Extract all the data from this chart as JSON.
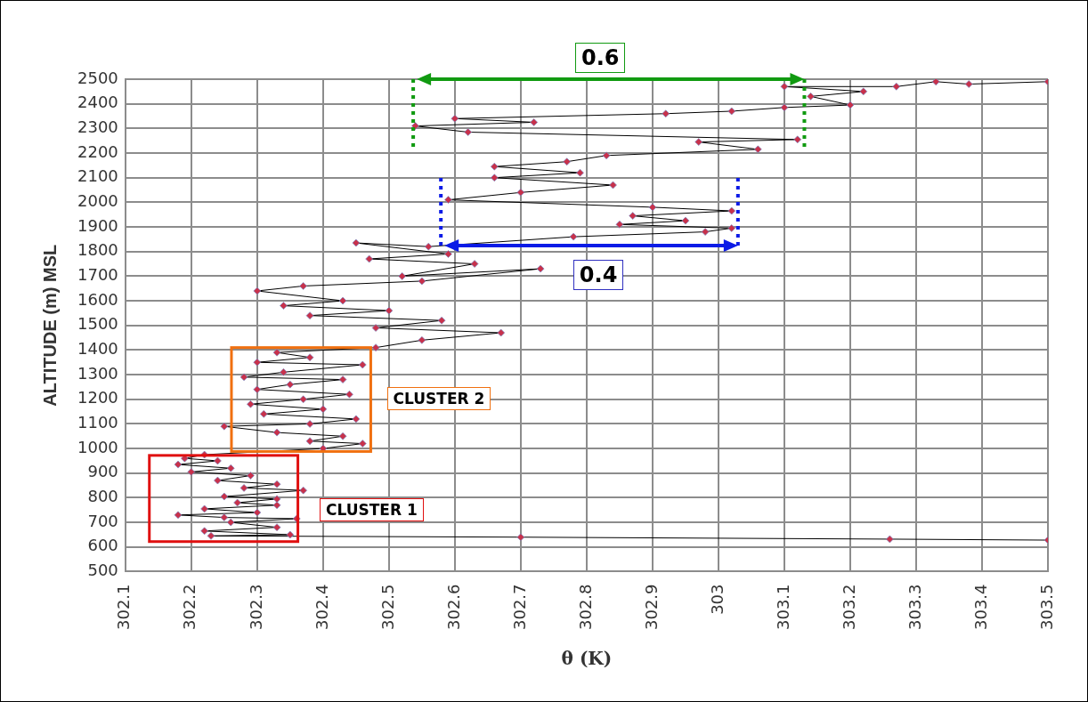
{
  "chart_data": {
    "type": "line",
    "xlabel": "θ (K)",
    "ylabel": "ALTITUDE (m) MSL",
    "xlim": [
      302.1,
      303.5
    ],
    "xticks": [
      302.1,
      302.2,
      302.3,
      302.4,
      302.5,
      302.6,
      302.7,
      302.8,
      302.9,
      303,
      303.1,
      303.2,
      303.3,
      303.4,
      303.5
    ],
    "ylim": [
      500,
      2500
    ],
    "yticks": [
      500,
      600,
      700,
      800,
      900,
      1000,
      1100,
      1200,
      1300,
      1400,
      1500,
      1600,
      1700,
      1800,
      1900,
      2000,
      2100,
      2200,
      2300,
      2400,
      2500
    ],
    "grid": true,
    "legend": false,
    "marker": "diamond",
    "line_style": "solid",
    "annotations": [
      "0.6",
      "0.4",
      "CLUSTER 2",
      "CLUSTER 1"
    ],
    "series": [
      {
        "color": "#c8314b",
        "x": [
          303.5,
          303.26,
          302.7,
          302.23,
          302.35,
          302.22,
          302.33,
          302.26,
          302.36,
          302.25,
          302.18,
          302.3,
          302.22,
          302.33,
          302.27,
          302.33,
          302.25,
          302.37,
          302.28,
          302.33,
          302.24,
          302.29,
          302.2,
          302.26,
          302.18,
          302.24,
          302.19,
          302.22,
          302.4,
          302.46,
          302.38,
          302.43,
          302.33,
          302.25,
          302.38,
          302.45,
          302.31,
          302.4,
          302.29,
          302.37,
          302.44,
          302.3,
          302.35,
          302.43,
          302.28,
          302.34,
          302.46,
          302.3,
          302.38,
          302.33,
          302.48,
          302.55,
          302.67,
          302.48,
          302.58,
          302.38,
          302.5,
          302.34,
          302.43,
          302.3,
          302.37,
          302.55,
          302.73,
          302.52,
          302.63,
          302.47,
          302.59,
          302.45,
          302.56,
          302.78,
          302.98,
          303.02,
          302.85,
          302.95,
          302.87,
          303.02,
          302.9,
          302.59,
          302.7,
          302.84,
          302.66,
          302.79,
          302.66,
          302.77,
          302.83,
          303.06,
          302.97,
          303.12,
          302.62,
          302.54,
          302.72,
          302.6,
          302.92,
          303.02,
          303.1,
          303.2,
          303.14,
          303.22,
          303.1,
          303.27,
          303.33,
          303.38,
          303.5
        ],
        "values": [
          628,
          632,
          640,
          645,
          650,
          665,
          680,
          700,
          715,
          720,
          730,
          740,
          755,
          770,
          780,
          795,
          805,
          830,
          840,
          855,
          870,
          890,
          905,
          920,
          935,
          950,
          960,
          975,
          1000,
          1020,
          1030,
          1050,
          1065,
          1090,
          1100,
          1120,
          1140,
          1160,
          1180,
          1200,
          1220,
          1240,
          1260,
          1280,
          1290,
          1310,
          1340,
          1350,
          1370,
          1390,
          1410,
          1440,
          1470,
          1490,
          1520,
          1540,
          1560,
          1580,
          1600,
          1640,
          1660,
          1680,
          1730,
          1700,
          1750,
          1770,
          1790,
          1835,
          1820,
          1860,
          1880,
          1895,
          1910,
          1925,
          1945,
          1965,
          1980,
          2010,
          2040,
          2070,
          2100,
          2120,
          2145,
          2165,
          2190,
          2215,
          2245,
          2255,
          2285,
          2310,
          2325,
          2340,
          2360,
          2370,
          2385,
          2395,
          2430,
          2450,
          2470,
          2470,
          2490,
          2480,
          2490
        ]
      }
    ]
  }
}
